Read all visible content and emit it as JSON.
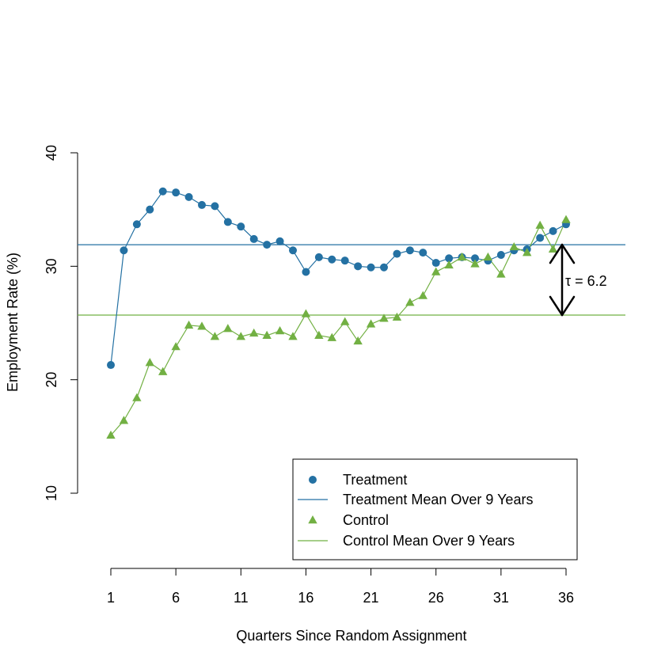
{
  "chart_data": {
    "type": "line",
    "xlabel": "Quarters Since Random Assignment",
    "ylabel": "Employment Rate (%)",
    "xlim": [
      1,
      36
    ],
    "ylim": [
      10,
      40
    ],
    "x_ticks": [
      1,
      6,
      11,
      16,
      21,
      26,
      31,
      36
    ],
    "y_ticks": [
      10,
      20,
      30,
      40
    ],
    "grid": false,
    "legend_placement": "bottom-right",
    "x": [
      1,
      2,
      3,
      4,
      5,
      6,
      7,
      8,
      9,
      10,
      11,
      12,
      13,
      14,
      15,
      16,
      17,
      18,
      19,
      20,
      21,
      22,
      23,
      24,
      25,
      26,
      27,
      28,
      29,
      30,
      31,
      32,
      33,
      34,
      35,
      36
    ],
    "series": [
      {
        "name": "Treatment",
        "marker": "circle",
        "color": "#2471a3",
        "values": [
          21.3,
          31.4,
          33.7,
          35.0,
          36.6,
          36.5,
          36.1,
          35.4,
          35.3,
          33.9,
          33.5,
          32.4,
          31.9,
          32.2,
          31.4,
          29.5,
          30.8,
          30.6,
          30.5,
          30.0,
          29.9,
          29.9,
          31.1,
          31.4,
          31.2,
          30.3,
          30.7,
          30.8,
          30.7,
          30.5,
          31.0,
          31.4,
          31.5,
          32.5,
          33.1,
          33.7
        ]
      },
      {
        "name": "Control",
        "marker": "triangle",
        "color": "#72b043",
        "values": [
          15.1,
          16.4,
          18.4,
          21.5,
          20.7,
          22.9,
          24.8,
          24.7,
          23.8,
          24.5,
          23.8,
          24.1,
          23.9,
          24.3,
          23.8,
          25.8,
          23.9,
          23.7,
          25.1,
          23.4,
          24.9,
          25.4,
          25.5,
          26.8,
          27.4,
          29.5,
          30.1,
          30.8,
          30.2,
          30.8,
          29.3,
          31.7,
          31.2,
          33.6,
          31.5,
          34.1
        ]
      }
    ],
    "reference_lines": [
      {
        "name": "Treatment Mean Over 9 Years",
        "y": 31.9,
        "color": "#2471a3"
      },
      {
        "name": "Control Mean Over 9 Years",
        "y": 25.7,
        "color": "#72b043"
      }
    ],
    "annotation": {
      "text": "τ = 6.2",
      "x": 36,
      "y_from": 25.7,
      "y_to": 31.9
    },
    "legend": [
      {
        "label": "Treatment",
        "kind": "point",
        "color": "#2471a3"
      },
      {
        "label": "Treatment Mean Over 9 Years",
        "kind": "line",
        "color": "#2471a3"
      },
      {
        "label": "Control",
        "kind": "triangle",
        "color": "#72b043"
      },
      {
        "label": "Control Mean Over 9 Years",
        "kind": "line",
        "color": "#72b043"
      }
    ]
  }
}
